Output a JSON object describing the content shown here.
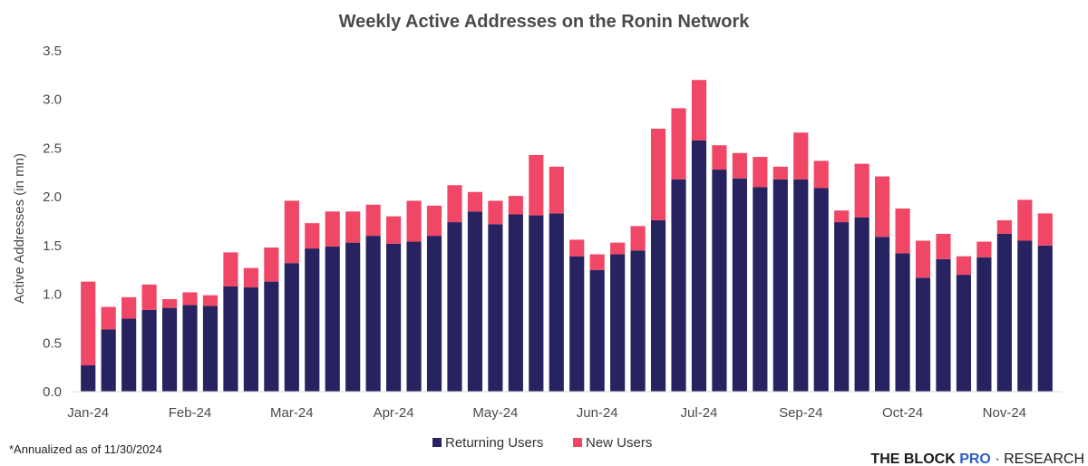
{
  "chart_data": {
    "type": "bar",
    "stacked": true,
    "title": "Weekly Active Addresses on the Ronin Network",
    "ylabel": "Active Addresses (in mn)",
    "xlabel": "",
    "ylim": [
      0,
      3.5
    ],
    "yticks": [
      "0.0",
      "0.5",
      "1.0",
      "1.5",
      "2.0",
      "2.5",
      "3.0",
      "3.5"
    ],
    "grid": false,
    "legend_position": "bottom-center",
    "x_tick_labels": [
      {
        "label": "Jan-24",
        "index": 0
      },
      {
        "label": "Feb-24",
        "index": 5
      },
      {
        "label": "Mar-24",
        "index": 10
      },
      {
        "label": "Apr-24",
        "index": 15
      },
      {
        "label": "May-24",
        "index": 20
      },
      {
        "label": "Jun-24",
        "index": 25
      },
      {
        "label": "Jul-24",
        "index": 30
      },
      {
        "label": "Sep-24",
        "index": 35
      },
      {
        "label": "Oct-24",
        "index": 40
      },
      {
        "label": "Nov-24",
        "index": 45
      }
    ],
    "series": [
      {
        "name": "Returning Users",
        "color": "#272360",
        "values": [
          0.27,
          0.64,
          0.75,
          0.84,
          0.86,
          0.89,
          0.88,
          1.08,
          1.07,
          1.13,
          1.32,
          1.47,
          1.49,
          1.53,
          1.6,
          1.52,
          1.54,
          1.6,
          1.74,
          1.85,
          1.72,
          1.82,
          1.81,
          1.83,
          1.39,
          1.25,
          1.41,
          1.45,
          1.76,
          2.18,
          2.58,
          2.28,
          2.19,
          2.1,
          2.18,
          2.18,
          2.09,
          1.74,
          1.79,
          1.59,
          1.42,
          1.17,
          1.36,
          1.2,
          1.38,
          1.62,
          1.55,
          1.5
        ]
      },
      {
        "name": "New Users",
        "color": "#f04766",
        "values": [
          0.86,
          0.23,
          0.22,
          0.26,
          0.09,
          0.13,
          0.11,
          0.35,
          0.2,
          0.35,
          0.64,
          0.26,
          0.36,
          0.32,
          0.32,
          0.28,
          0.42,
          0.31,
          0.38,
          0.2,
          0.24,
          0.19,
          0.62,
          0.48,
          0.17,
          0.16,
          0.12,
          0.25,
          0.94,
          0.73,
          0.62,
          0.25,
          0.26,
          0.31,
          0.13,
          0.48,
          0.28,
          0.12,
          0.55,
          0.62,
          0.46,
          0.38,
          0.26,
          0.19,
          0.16,
          0.14,
          0.42,
          0.33
        ]
      }
    ]
  },
  "footnote": "*Annualized as of 11/30/2024",
  "brand": {
    "main": "THE BLOCK",
    "pro": "PRO",
    "rest": " · RESEARCH"
  }
}
